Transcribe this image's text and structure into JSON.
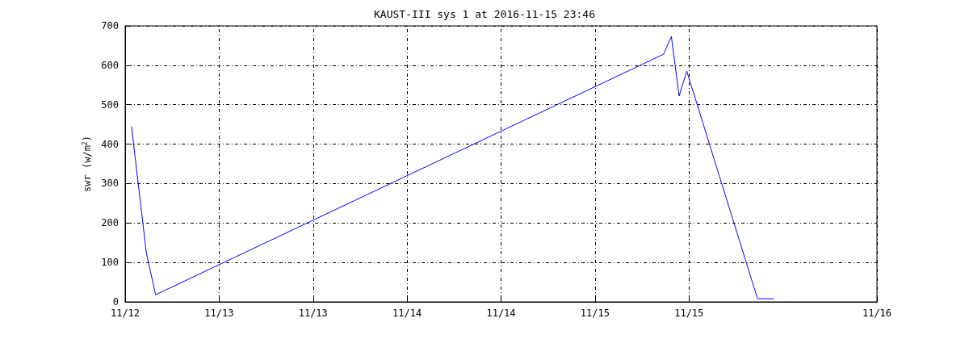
{
  "chart_data": {
    "type": "line",
    "title": "KAUST-III sys 1 at 2016-11-15 23:46",
    "ylabel": "swr (w/m$^{2}$)",
    "x": [
      "2016-11-12T00:49",
      "2016-11-12T02:42",
      "2016-11-12T03:53",
      "2016-11-14T20:45",
      "2016-11-14T21:45",
      "2016-11-14T22:44",
      "2016-11-14T23:43",
      "2016-11-15T08:45",
      "2016-11-15T10:50"
    ],
    "series": [
      {
        "color": "#0000ff",
        "values": [
          444,
          125,
          18,
          628,
          673,
          522,
          585,
          8,
          8
        ]
      }
    ],
    "xlim": [
      "2016-11-12T00:00",
      "2016-11-16T00:00"
    ],
    "xticks": [
      {
        "value": "2016-11-12T00:00",
        "label": "11/12"
      },
      {
        "value": "2016-11-12T12:00",
        "label": "11/13"
      },
      {
        "value": "2016-11-13T00:00",
        "label": "11/13"
      },
      {
        "value": "2016-11-13T12:00",
        "label": "11/14"
      },
      {
        "value": "2016-11-14T00:00",
        "label": "11/14"
      },
      {
        "value": "2016-11-14T12:00",
        "label": "11/15"
      },
      {
        "value": "2016-11-15T00:00",
        "label": "11/15"
      },
      {
        "value": "2016-11-16T00:00",
        "label": "11/16"
      }
    ],
    "ylim": [
      0,
      700
    ],
    "yticks": [
      0,
      100,
      200,
      300,
      400,
      500,
      600,
      700
    ],
    "grid": true,
    "line_style": "solid"
  }
}
